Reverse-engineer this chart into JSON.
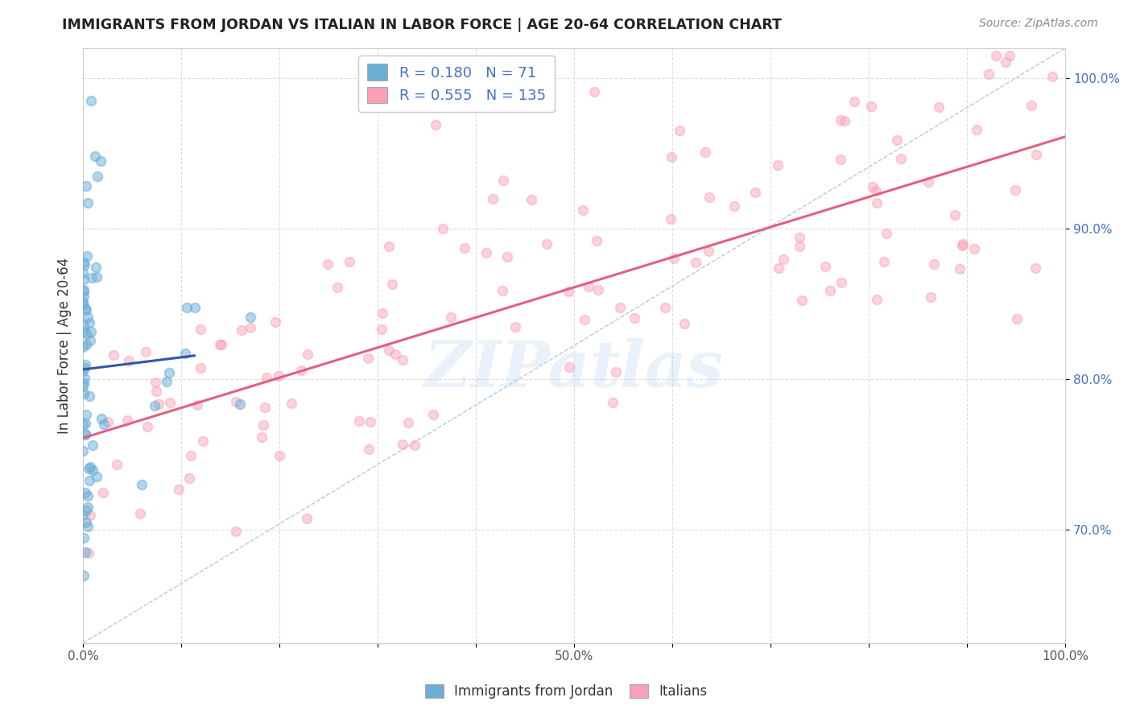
{
  "title": "IMMIGRANTS FROM JORDAN VS ITALIAN IN LABOR FORCE | AGE 20-64 CORRELATION CHART",
  "source": "Source: ZipAtlas.com",
  "ylabel": "In Labor Force | Age 20-64",
  "xlim": [
    0.0,
    1.0
  ],
  "ylim": [
    0.625,
    1.02
  ],
  "xtick_pos": [
    0.0,
    0.1,
    0.2,
    0.3,
    0.4,
    0.5,
    0.6,
    0.7,
    0.8,
    0.9,
    1.0
  ],
  "xtick_labels": [
    "0.0%",
    "",
    "",
    "",
    "",
    "50.0%",
    "",
    "",
    "",
    "",
    "100.0%"
  ],
  "ytick_pos": [
    0.7,
    0.8,
    0.9,
    1.0
  ],
  "ytick_labels": [
    "70.0%",
    "80.0%",
    "90.0%",
    "100.0%"
  ],
  "legend_jordan_R": "0.180",
  "legend_jordan_N": "71",
  "legend_italian_R": "0.555",
  "legend_italian_N": "135",
  "jordan_color": "#6baed6",
  "italian_color": "#fa9fb5",
  "jordan_line_color": "#3355aa",
  "italian_line_color": "#e06080",
  "diagonal_color": "#aac4e0",
  "watermark": "ZIPatlas",
  "title_color": "#222222",
  "source_color": "#888888",
  "ytick_color": "#4472C4",
  "xtick_color": "#555555",
  "grid_color": "#dddddd"
}
